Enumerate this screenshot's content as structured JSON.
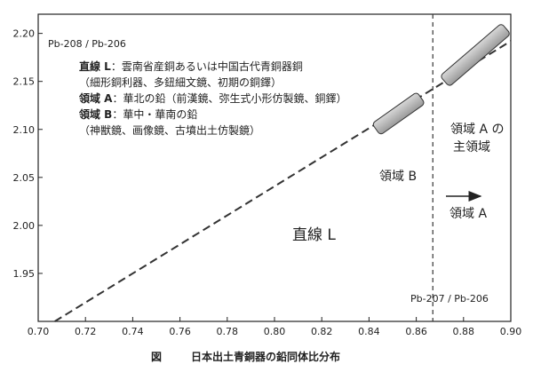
{
  "chart_data": {
    "type": "scatter",
    "title": "",
    "caption_prefix": "図",
    "caption": "日本出土青銅器の鉛同体比分布",
    "xlabel": "Pb-207 / Pb-206",
    "ylabel": "Pb-208 / Pb-206",
    "xlim": [
      0.7,
      0.9
    ],
    "ylim": [
      1.9,
      2.22
    ],
    "x_ticks": [
      "0.70",
      "0.72",
      "0.74",
      "0.76",
      "0.78",
      "0.80",
      "0.82",
      "0.84",
      "0.86",
      "0.88",
      "0.90"
    ],
    "y_ticks": [
      "2.20",
      "2.15",
      "2.10",
      "2.05",
      "2.00",
      "1.95"
    ],
    "grid": false,
    "line_L": {
      "label": "直線 L",
      "x1": 0.707,
      "y1": 1.9,
      "x2": 0.9,
      "y2": 2.192
    },
    "vertical_line": {
      "x": 0.867
    },
    "regions": [
      {
        "id": "region-b",
        "label": "領域 B",
        "x_from": 0.843,
        "x_to": 0.862,
        "y_from": 2.1,
        "y_to": 2.133
      },
      {
        "id": "region-a-main",
        "label_line1": "領域 A の",
        "label_line2": "主領域",
        "x_from": 0.872,
        "x_to": 0.898,
        "y_from": 2.15,
        "y_to": 2.205
      }
    ],
    "arrow": {
      "label": "領域 A"
    },
    "legend": [
      {
        "key": "直線 L",
        "text": "：雲南省産銅あるいは中国古代青銅器銅"
      },
      {
        "key": "",
        "text": "（細形銅利器、多鈕細文鏡、初期の銅鐸）"
      },
      {
        "key": "領域 A",
        "text": "：華北の鉛（前漢鏡、弥生式小形仿製鏡、銅鐸）"
      },
      {
        "key": "領域 B",
        "text": "：華中・華南の鉛"
      },
      {
        "key": "",
        "text": "（神獣鏡、画像鏡、古墳出土仿製鏡）"
      }
    ]
  }
}
